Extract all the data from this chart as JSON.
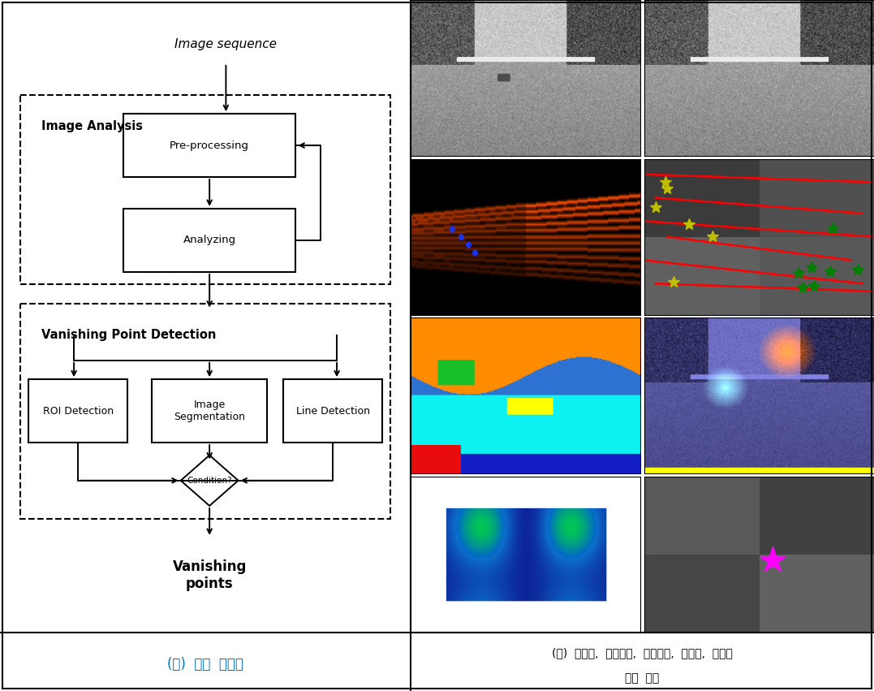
{
  "title_left": "(가)  처리  흐름도",
  "title_right_line1": "(나)  원영상,  직선검출,  영상분할,  현저함,  소실점",
  "title_right_line2": "검출  결과",
  "caption_color": "#0070C0",
  "bg_color": "#ffffff",
  "flowchart": {
    "image_sequence": "Image sequence",
    "image_analysis": "Image Analysis",
    "pre_processing": "Pre-processing",
    "analyzing": "Analyzing",
    "vanishing_point_detection": "Vanishing Point Detection",
    "roi_detection": "ROI Detection",
    "image_segmentation": "Image\nSegmentation",
    "line_detection": "Line Detection",
    "condition": "Condition?",
    "vanishing_points": "Vanishing\npoints"
  }
}
